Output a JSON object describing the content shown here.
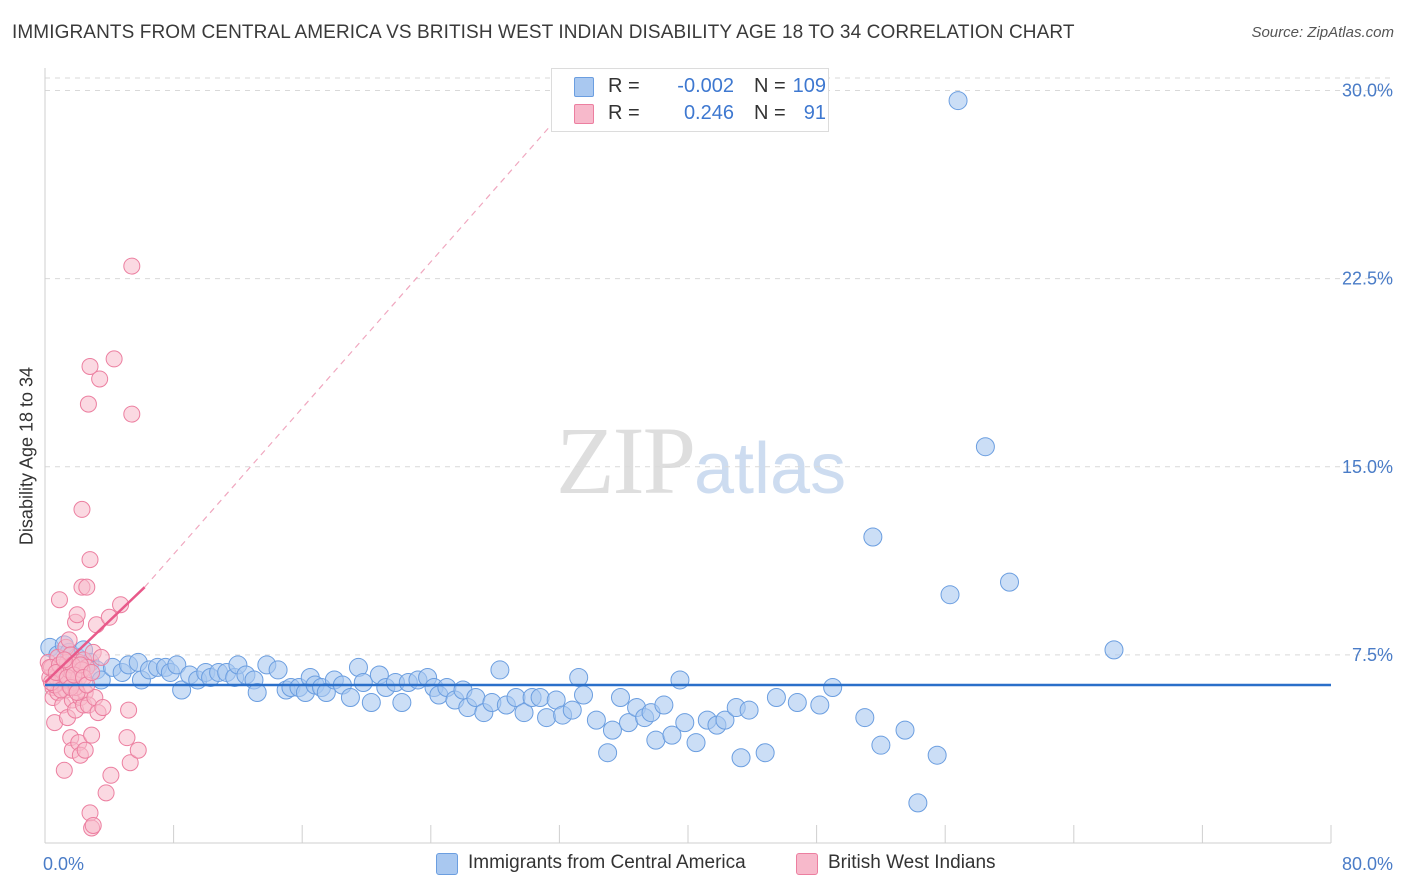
{
  "header": {
    "title": "IMMIGRANTS FROM CENTRAL AMERICA VS BRITISH WEST INDIAN DISABILITY AGE 18 TO 34 CORRELATION CHART",
    "source": "Source: ZipAtlas.com"
  },
  "watermark": {
    "zip": "ZIP",
    "atlas": "atlas"
  },
  "colors": {
    "blue_fill": "#a9c8f0",
    "blue_stroke": "#6b9ee0",
    "blue_line": "#2a6fc9",
    "pink_fill": "#f7b9cb",
    "pink_stroke": "#ec7fa0",
    "pink_line": "#e8598a",
    "grid": "#d9d9d9",
    "tick_text": "#4a7cc7"
  },
  "legend": {
    "rows": [
      {
        "r_label": "R =",
        "r_value": "-0.002",
        "n_label": "N =",
        "n_value": "109",
        "color": "#a9c8f0"
      },
      {
        "r_label": "R =",
        "r_value": "0.246",
        "n_label": "N =",
        "n_value": "91",
        "color": "#f7b9cb"
      }
    ]
  },
  "bottom_legend": [
    {
      "label": "Immigrants from Central America",
      "color": "#a9c8f0"
    },
    {
      "label": "British West Indians",
      "color": "#f7b9cb"
    }
  ],
  "chart_data": {
    "type": "scatter",
    "title": "IMMIGRANTS FROM CENTRAL AMERICA VS BRITISH WEST INDIAN DISABILITY AGE 18 TO 34 CORRELATION CHART",
    "xlabel": "",
    "ylabel": "Disability Age 18 to 34",
    "xlim": [
      0,
      80
    ],
    "ylim": [
      0,
      30.5
    ],
    "x_tick_labels": [
      "0.0%",
      "80.0%"
    ],
    "y_ticks": [
      7.5,
      15.0,
      22.5,
      30.0
    ],
    "y_tick_labels": [
      "7.5%",
      "15.0%",
      "22.5%",
      "30.0%"
    ],
    "grid": true,
    "series": [
      {
        "name": "Immigrants from Central America",
        "R": -0.002,
        "N": 109,
        "trend": {
          "x": [
            0,
            80
          ],
          "y": [
            6.3,
            6.3
          ]
        },
        "points": [
          [
            0.3,
            7.8
          ],
          [
            0.8,
            7.5
          ],
          [
            1.2,
            7.9
          ],
          [
            1.5,
            7.6
          ],
          [
            2.0,
            7.4
          ],
          [
            2.4,
            7.7
          ],
          [
            2.8,
            7.2
          ],
          [
            3.2,
            6.9
          ],
          [
            3.5,
            6.5
          ],
          [
            4.2,
            7.0
          ],
          [
            4.8,
            6.8
          ],
          [
            5.2,
            7.1
          ],
          [
            5.8,
            7.2
          ],
          [
            6.0,
            6.5
          ],
          [
            6.5,
            6.9
          ],
          [
            7.0,
            7.0
          ],
          [
            7.5,
            7.0
          ],
          [
            7.8,
            6.8
          ],
          [
            8.2,
            7.1
          ],
          [
            8.5,
            6.1
          ],
          [
            9.0,
            6.7
          ],
          [
            9.5,
            6.5
          ],
          [
            10.0,
            6.8
          ],
          [
            10.3,
            6.6
          ],
          [
            10.8,
            6.8
          ],
          [
            11.3,
            6.8
          ],
          [
            11.8,
            6.6
          ],
          [
            12.0,
            7.1
          ],
          [
            12.5,
            6.7
          ],
          [
            13.0,
            6.5
          ],
          [
            13.2,
            6.0
          ],
          [
            13.8,
            7.1
          ],
          [
            14.5,
            6.9
          ],
          [
            15.0,
            6.1
          ],
          [
            15.3,
            6.2
          ],
          [
            15.8,
            6.2
          ],
          [
            16.2,
            6.0
          ],
          [
            16.5,
            6.6
          ],
          [
            16.8,
            6.3
          ],
          [
            17.2,
            6.2
          ],
          [
            17.5,
            6.0
          ],
          [
            18.0,
            6.5
          ],
          [
            18.5,
            6.3
          ],
          [
            19.0,
            5.8
          ],
          [
            19.5,
            7.0
          ],
          [
            19.8,
            6.4
          ],
          [
            20.3,
            5.6
          ],
          [
            20.8,
            6.7
          ],
          [
            21.2,
            6.2
          ],
          [
            21.8,
            6.4
          ],
          [
            22.2,
            5.6
          ],
          [
            22.6,
            6.4
          ],
          [
            23.2,
            6.5
          ],
          [
            23.8,
            6.6
          ],
          [
            24.2,
            6.2
          ],
          [
            24.5,
            5.9
          ],
          [
            25.0,
            6.2
          ],
          [
            25.5,
            5.7
          ],
          [
            26.0,
            6.1
          ],
          [
            26.3,
            5.4
          ],
          [
            26.8,
            5.8
          ],
          [
            27.3,
            5.2
          ],
          [
            27.8,
            5.6
          ],
          [
            28.3,
            6.9
          ],
          [
            28.7,
            5.5
          ],
          [
            29.3,
            5.8
          ],
          [
            29.8,
            5.2
          ],
          [
            30.3,
            5.8
          ],
          [
            30.8,
            5.8
          ],
          [
            31.2,
            5.0
          ],
          [
            31.8,
            5.7
          ],
          [
            32.2,
            5.1
          ],
          [
            32.8,
            5.3
          ],
          [
            33.2,
            6.6
          ],
          [
            33.5,
            5.9
          ],
          [
            34.3,
            4.9
          ],
          [
            35.0,
            3.6
          ],
          [
            35.3,
            4.5
          ],
          [
            35.8,
            5.8
          ],
          [
            36.3,
            4.8
          ],
          [
            36.8,
            5.4
          ],
          [
            37.3,
            5.0
          ],
          [
            37.7,
            5.2
          ],
          [
            38.0,
            4.1
          ],
          [
            38.5,
            5.5
          ],
          [
            39.0,
            4.3
          ],
          [
            39.5,
            6.5
          ],
          [
            39.8,
            4.8
          ],
          [
            40.5,
            4.0
          ],
          [
            41.2,
            4.9
          ],
          [
            41.8,
            4.7
          ],
          [
            42.3,
            4.9
          ],
          [
            43.0,
            5.4
          ],
          [
            43.3,
            3.4
          ],
          [
            43.8,
            5.3
          ],
          [
            44.8,
            3.6
          ],
          [
            45.5,
            5.8
          ],
          [
            46.8,
            5.6
          ],
          [
            48.2,
            5.5
          ],
          [
            49.0,
            6.2
          ],
          [
            51.0,
            5.0
          ],
          [
            51.5,
            12.2
          ],
          [
            52.0,
            3.9
          ],
          [
            53.5,
            4.5
          ],
          [
            54.3,
            1.6
          ],
          [
            55.5,
            3.5
          ],
          [
            56.3,
            9.9
          ],
          [
            56.8,
            29.6
          ],
          [
            58.5,
            15.8
          ],
          [
            60.0,
            10.4
          ],
          [
            66.5,
            7.7
          ]
        ]
      },
      {
        "name": "British West Indians",
        "R": 0.246,
        "N": 91,
        "trend": {
          "x": [
            0,
            6.2
          ],
          "y": [
            6.4,
            10.2
          ]
        },
        "trend_extended": {
          "x": [
            6.2,
            32
          ],
          "y": [
            10.2,
            29.0
          ]
        },
        "points": [
          [
            0.2,
            7.2
          ],
          [
            0.3,
            6.6
          ],
          [
            0.4,
            7.0
          ],
          [
            0.5,
            6.2
          ],
          [
            0.5,
            5.8
          ],
          [
            0.6,
            4.8
          ],
          [
            0.7,
            6.6
          ],
          [
            0.8,
            7.4
          ],
          [
            0.8,
            6.0
          ],
          [
            0.9,
            9.7
          ],
          [
            1.0,
            7.0
          ],
          [
            1.0,
            6.4
          ],
          [
            1.1,
            5.5
          ],
          [
            1.2,
            2.9
          ],
          [
            1.2,
            6.8
          ],
          [
            1.3,
            7.8
          ],
          [
            1.3,
            6.1
          ],
          [
            1.4,
            7.2
          ],
          [
            1.4,
            5.0
          ],
          [
            1.5,
            8.1
          ],
          [
            1.5,
            6.3
          ],
          [
            1.6,
            7.5
          ],
          [
            1.6,
            4.2
          ],
          [
            1.7,
            5.7
          ],
          [
            1.7,
            3.7
          ],
          [
            1.8,
            7.0
          ],
          [
            1.8,
            6.4
          ],
          [
            1.9,
            8.8
          ],
          [
            1.9,
            5.3
          ],
          [
            2.0,
            9.1
          ],
          [
            2.0,
            6.8
          ],
          [
            2.1,
            7.2
          ],
          [
            2.1,
            4.0
          ],
          [
            2.2,
            5.8
          ],
          [
            2.2,
            3.5
          ],
          [
            2.3,
            13.3
          ],
          [
            2.3,
            10.2
          ],
          [
            2.4,
            7.3
          ],
          [
            2.4,
            5.5
          ],
          [
            2.5,
            6.0
          ],
          [
            2.5,
            3.7
          ],
          [
            2.6,
            10.2
          ],
          [
            2.6,
            7.0
          ],
          [
            2.7,
            17.5
          ],
          [
            2.7,
            5.5
          ],
          [
            2.8,
            19.0
          ],
          [
            2.8,
            11.3
          ],
          [
            2.8,
            1.2
          ],
          [
            2.9,
            0.6
          ],
          [
            2.9,
            4.3
          ],
          [
            3.0,
            7.6
          ],
          [
            3.0,
            0.7
          ],
          [
            3.1,
            5.8
          ],
          [
            3.2,
            8.7
          ],
          [
            3.3,
            5.2
          ],
          [
            3.4,
            18.5
          ],
          [
            3.5,
            7.4
          ],
          [
            3.6,
            5.4
          ],
          [
            3.8,
            2.0
          ],
          [
            4.0,
            9.0
          ],
          [
            4.1,
            2.7
          ],
          [
            4.3,
            19.3
          ],
          [
            4.7,
            9.5
          ],
          [
            5.1,
            4.2
          ],
          [
            5.2,
            5.3
          ],
          [
            5.3,
            3.2
          ],
          [
            5.4,
            17.1
          ],
          [
            5.4,
            23.0
          ],
          [
            5.8,
            3.7
          ],
          [
            0.3,
            7.0
          ],
          [
            0.6,
            6.3
          ],
          [
            0.9,
            7.1
          ],
          [
            1.1,
            6.7
          ],
          [
            1.3,
            6.5
          ],
          [
            1.5,
            6.9
          ],
          [
            1.7,
            7.1
          ],
          [
            1.9,
            6.2
          ],
          [
            2.1,
            6.6
          ],
          [
            2.3,
            6.9
          ],
          [
            0.4,
            6.4
          ],
          [
            0.7,
            6.8
          ],
          [
            1.0,
            6.1
          ],
          [
            1.2,
            7.3
          ],
          [
            1.4,
            6.6
          ],
          [
            1.6,
            6.2
          ],
          [
            1.8,
            6.7
          ],
          [
            2.0,
            6.0
          ],
          [
            2.2,
            7.1
          ],
          [
            2.4,
            6.6
          ],
          [
            2.6,
            6.3
          ],
          [
            2.9,
            6.8
          ]
        ]
      }
    ]
  }
}
